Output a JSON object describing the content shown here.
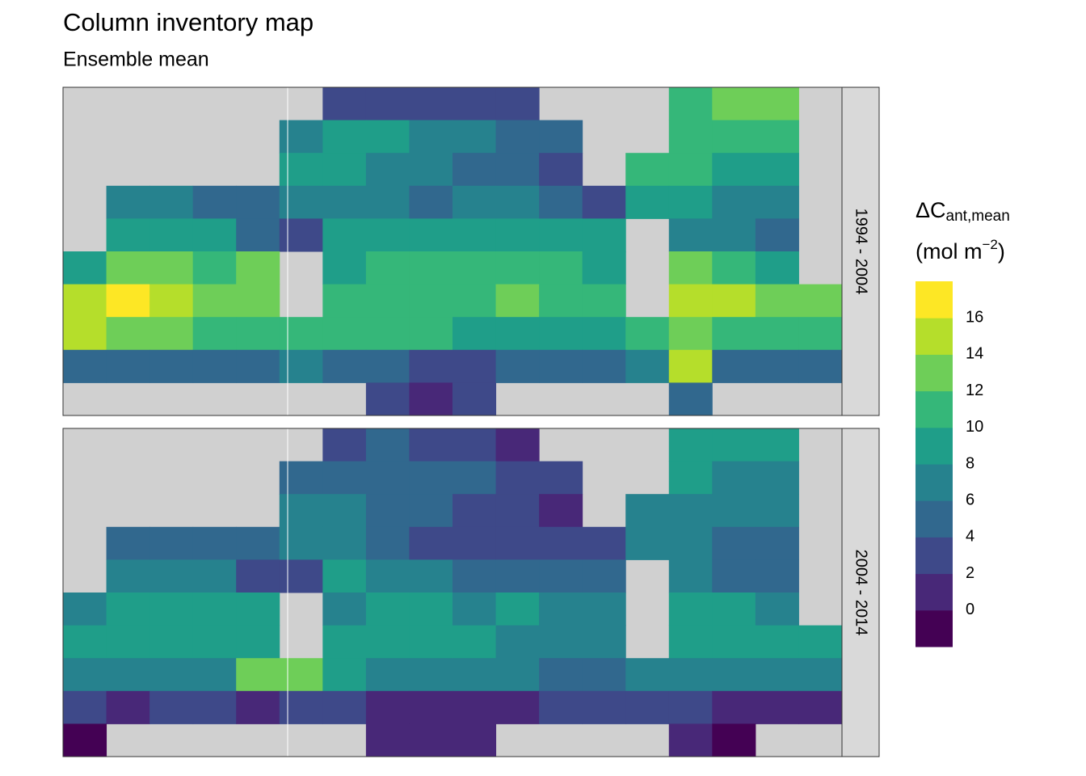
{
  "chart_data": {
    "type": "heatmap",
    "title": "Column inventory map",
    "subtitle": "Ensemble mean",
    "xlim": [
      20,
      380
    ],
    "ylim": [
      -80,
      70
    ],
    "land_color": "#d0d0d0",
    "legend": {
      "title_main": "ΔC",
      "title_sub": "ant,mean",
      "unit_open": "(mol m",
      "unit_sup": "−2",
      "unit_close": ")",
      "lim": [
        -2,
        18
      ],
      "ticks": [
        0,
        2,
        4,
        6,
        8,
        10,
        12,
        14,
        16
      ],
      "colors": [
        "#440154",
        "#482878",
        "#3e4989",
        "#31688e",
        "#26828e",
        "#1f9e89",
        "#35b779",
        "#6ece58",
        "#b5de2b",
        "#fde725"
      ]
    },
    "panels": [
      {
        "label": "1994 - 2004",
        "values": [
          [
            null,
            null,
            null,
            null,
            null,
            null,
            2,
            2,
            3,
            3,
            2,
            null,
            null,
            null,
            10,
            12,
            12,
            null
          ],
          [
            null,
            null,
            null,
            null,
            null,
            6,
            8,
            8,
            7,
            7,
            5,
            4,
            null,
            null,
            11,
            10,
            10,
            null
          ],
          [
            null,
            null,
            null,
            null,
            null,
            9,
            8,
            7,
            6,
            5,
            4,
            3,
            null,
            10,
            10,
            9,
            9,
            null
          ],
          [
            null,
            6,
            6,
            5,
            5,
            7,
            7,
            6,
            5,
            6,
            6,
            5,
            3,
            8,
            8,
            7,
            6,
            null
          ],
          [
            null,
            9,
            8,
            8,
            4,
            3,
            8,
            9,
            9,
            9,
            9,
            8,
            8,
            null,
            6,
            7,
            5,
            null
          ],
          [
            9,
            12,
            12,
            11,
            12,
            null,
            9,
            10,
            10,
            11,
            11,
            10,
            9,
            null,
            12,
            10,
            9,
            null
          ],
          [
            15,
            16,
            14,
            13,
            12,
            null,
            11,
            11,
            11,
            11,
            12,
            11,
            10,
            null,
            14,
            14,
            13,
            12
          ],
          [
            14,
            13,
            12,
            11,
            11,
            10,
            10,
            10,
            10,
            9,
            9,
            9,
            8,
            11,
            12,
            10,
            10,
            10
          ],
          [
            5,
            5,
            4,
            5,
            5,
            6,
            5,
            4,
            3,
            3,
            4,
            5,
            5,
            7,
            14,
            5,
            4,
            4
          ],
          [
            null,
            null,
            null,
            null,
            null,
            null,
            null,
            2,
            1,
            2,
            null,
            null,
            null,
            null,
            4,
            null,
            null,
            null
          ]
        ]
      },
      {
        "label": "2004 - 2014",
        "values": [
          [
            null,
            null,
            null,
            null,
            null,
            null,
            3,
            5,
            2,
            2,
            1,
            null,
            null,
            null,
            8,
            8,
            9,
            null
          ],
          [
            null,
            null,
            null,
            null,
            null,
            5,
            5,
            4,
            5,
            4,
            3,
            2,
            null,
            null,
            8,
            7,
            7,
            null
          ],
          [
            null,
            null,
            null,
            null,
            null,
            6,
            6,
            5,
            4,
            3,
            2,
            1,
            null,
            7,
            7,
            6,
            6,
            null
          ],
          [
            null,
            5,
            5,
            4,
            4,
            6,
            6,
            4,
            3,
            3,
            3,
            3,
            2,
            6,
            6,
            5,
            5,
            null
          ],
          [
            null,
            6,
            6,
            6,
            3,
            3,
            8,
            6,
            6,
            5,
            5,
            5,
            5,
            null,
            6,
            5,
            4,
            null
          ],
          [
            7,
            8,
            8,
            8,
            8,
            null,
            7,
            8,
            8,
            7,
            8,
            7,
            6,
            null,
            8,
            8,
            7,
            null
          ],
          [
            9,
            9,
            9,
            8,
            9,
            null,
            8,
            8,
            8,
            8,
            7,
            7,
            6,
            null,
            9,
            9,
            9,
            8
          ],
          [
            7,
            6,
            6,
            6,
            13,
            12,
            9,
            7,
            6,
            6,
            6,
            5,
            5,
            7,
            7,
            7,
            6,
            6
          ],
          [
            2,
            1,
            2,
            2,
            1,
            2,
            2,
            1,
            1,
            1,
            1,
            2,
            2,
            3,
            2,
            1,
            0.5,
            0.5
          ],
          [
            -1,
            null,
            null,
            null,
            null,
            null,
            null,
            1,
            0.5,
            1,
            null,
            null,
            null,
            null,
            0.5,
            -1,
            null,
            null
          ]
        ]
      }
    ]
  }
}
